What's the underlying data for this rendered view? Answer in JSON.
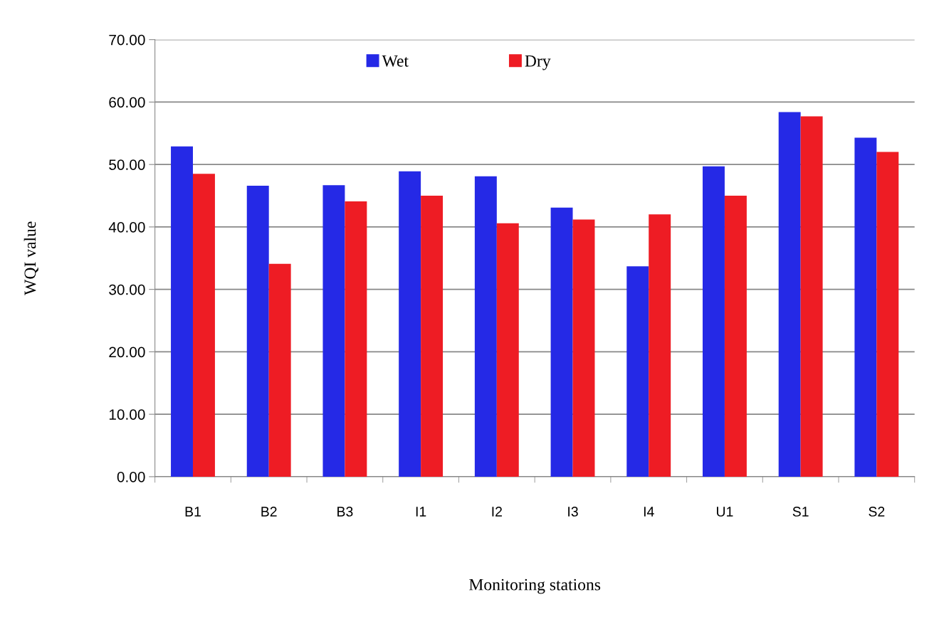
{
  "chart_data": {
    "type": "bar",
    "xlabel": "Monitoring stations",
    "ylabel": "WQI value",
    "categories": [
      "B1",
      "B2",
      "B3",
      "I1",
      "I2",
      "I3",
      "I4",
      "U1",
      "S1",
      "S2"
    ],
    "series": [
      {
        "name": "Wet",
        "color": "#2529e6",
        "values": [
          52.9,
          46.6,
          46.7,
          48.9,
          48.1,
          43.1,
          33.7,
          49.7,
          58.4,
          54.3
        ]
      },
      {
        "name": "Dry",
        "color": "#ee1c24",
        "values": [
          48.5,
          34.1,
          44.1,
          45.0,
          40.6,
          41.2,
          42.0,
          45.0,
          57.7,
          52.0
        ]
      }
    ],
    "ylim": [
      0,
      70
    ],
    "yticks": [
      {
        "value": 0,
        "label": "0.00"
      },
      {
        "value": 10,
        "label": "10.00"
      },
      {
        "value": 20,
        "label": "20.00"
      },
      {
        "value": 30,
        "label": "30.00"
      },
      {
        "value": 40,
        "label": "40.00"
      },
      {
        "value": 50,
        "label": "50.00"
      },
      {
        "value": 60,
        "label": "60.00"
      },
      {
        "value": 70,
        "label": "70.00"
      }
    ],
    "grid": "y",
    "legend": "top"
  }
}
